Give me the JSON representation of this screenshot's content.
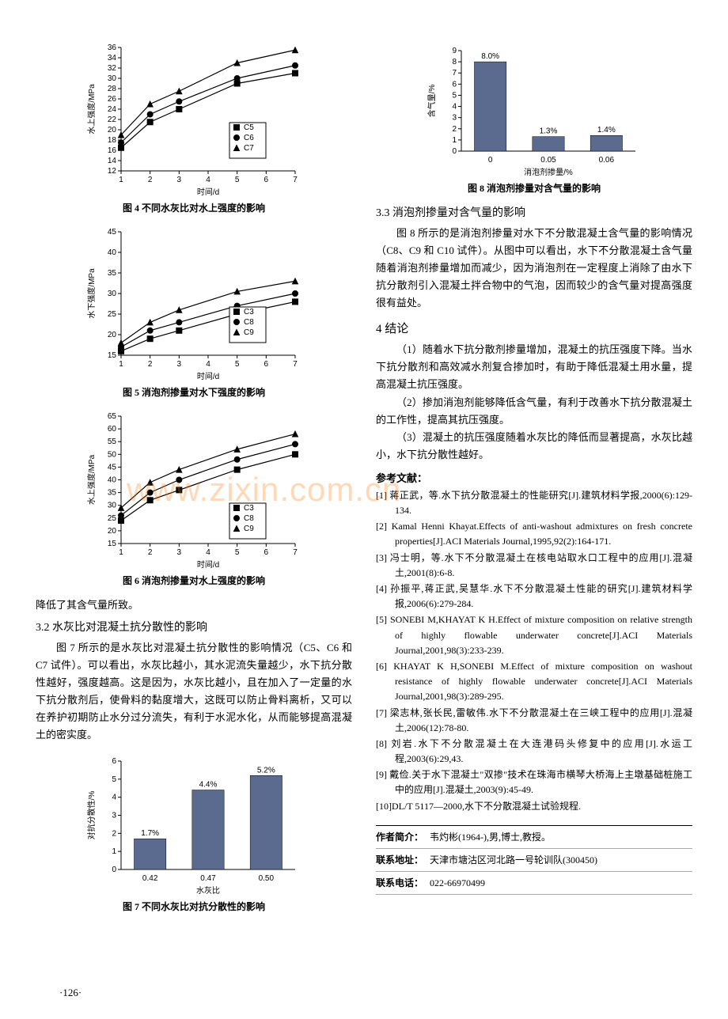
{
  "watermark": "www.zixin.com.cn",
  "page_number": "·126·",
  "left": {
    "fig4": {
      "caption": "图 4  不同水灰比对水上强度的影响",
      "xlabel": "时间/d",
      "ylabel": "水上强度/MPa",
      "xlim": [
        1,
        7
      ],
      "ylim": [
        12,
        36
      ],
      "xticks": [
        1,
        2,
        3,
        4,
        5,
        6,
        7
      ],
      "yticks": [
        12,
        14,
        16,
        18,
        20,
        22,
        24,
        26,
        28,
        30,
        32,
        34,
        36
      ],
      "series": [
        {
          "name": "C5",
          "color": "#000000",
          "marker": "square",
          "data": [
            [
              1,
              16.5
            ],
            [
              2,
              21.5
            ],
            [
              3,
              24
            ],
            [
              5,
              29
            ],
            [
              7,
              31
            ]
          ]
        },
        {
          "name": "C6",
          "color": "#000000",
          "marker": "circle",
          "data": [
            [
              1,
              17.5
            ],
            [
              2,
              23
            ],
            [
              3,
              25.5
            ],
            [
              5,
              30
            ],
            [
              7,
              32.5
            ]
          ]
        },
        {
          "name": "C7",
          "color": "#000000",
          "marker": "triangle",
          "data": [
            [
              1,
              19
            ],
            [
              2,
              25
            ],
            [
              3,
              27.5
            ],
            [
              5,
              33
            ],
            [
              7,
              35.5
            ]
          ]
        }
      ]
    },
    "fig5": {
      "caption": "图 5  消泡剂掺量对水下强度的影响",
      "xlabel": "时间/d",
      "ylabel": "水下强度/MPa",
      "xlim": [
        1,
        7
      ],
      "ylim": [
        15,
        45
      ],
      "xticks": [
        1,
        2,
        3,
        4,
        5,
        6,
        7
      ],
      "yticks": [
        15,
        20,
        25,
        30,
        35,
        40,
        45
      ],
      "series": [
        {
          "name": "C3",
          "color": "#000000",
          "marker": "square",
          "data": [
            [
              1,
              16
            ],
            [
              2,
              19
            ],
            [
              3,
              21
            ],
            [
              5,
              25
            ],
            [
              7,
              28
            ]
          ]
        },
        {
          "name": "C8",
          "color": "#000000",
          "marker": "circle",
          "data": [
            [
              1,
              17
            ],
            [
              2,
              21
            ],
            [
              3,
              23
            ],
            [
              5,
              27
            ],
            [
              7,
              30
            ]
          ]
        },
        {
          "name": "C9",
          "color": "#000000",
          "marker": "triangle",
          "data": [
            [
              1,
              18
            ],
            [
              2,
              23
            ],
            [
              3,
              26
            ],
            [
              5,
              30.5
            ],
            [
              7,
              33
            ]
          ]
        }
      ]
    },
    "fig6": {
      "caption": "图 6  消泡剂掺量对水上强度的影响",
      "xlabel": "时间/d",
      "ylabel": "水上强度/MPa",
      "xlim": [
        1,
        7
      ],
      "ylim": [
        15,
        65
      ],
      "xticks": [
        1,
        2,
        3,
        4,
        5,
        6,
        7
      ],
      "yticks": [
        15,
        20,
        25,
        30,
        35,
        40,
        45,
        50,
        55,
        60,
        65
      ],
      "series": [
        {
          "name": "C3",
          "color": "#000000",
          "marker": "square",
          "data": [
            [
              1,
              24
            ],
            [
              2,
              32
            ],
            [
              3,
              36
            ],
            [
              5,
              44
            ],
            [
              7,
              50
            ]
          ]
        },
        {
          "name": "C8",
          "color": "#000000",
          "marker": "circle",
          "data": [
            [
              1,
              26
            ],
            [
              2,
              35
            ],
            [
              3,
              40
            ],
            [
              5,
              48
            ],
            [
              7,
              54
            ]
          ]
        },
        {
          "name": "C9",
          "color": "#000000",
          "marker": "triangle",
          "data": [
            [
              1,
              29
            ],
            [
              2,
              39
            ],
            [
              3,
              44
            ],
            [
              5,
              52
            ],
            [
              7,
              58
            ]
          ]
        }
      ]
    },
    "para1": "降低了其含气量所致。",
    "h32": "3.2  水灰比对混凝土抗分散性的影响",
    "para2": "图 7 所示的是水灰比对混凝土抗分散性的影响情况（C5、C6 和 C7 试件）。可以看出，水灰比越小，其水泥流失量越少，水下抗分散性越好，强度越高。这是因为，水灰比越小，且在加入了一定量的水下抗分散剂后，使骨料的黏度增大，这既可以防止骨料离析，又可以在养护初期防止水分过分流失，有利于水泥水化，从而能够提高混凝土的密实度。",
    "fig7": {
      "caption": "图 7  不同水灰比对抗分散性的影响",
      "xlabel": "水灰比",
      "ylabel": "对抗分散性/%",
      "ylim": [
        0,
        6
      ],
      "yticks": [
        0,
        1,
        2,
        3,
        4,
        5,
        6
      ],
      "bars": [
        {
          "x": "0.42",
          "v": 1.7,
          "label": "1.7%"
        },
        {
          "x": "0.47",
          "v": 4.4,
          "label": "4.4%"
        },
        {
          "x": "0.50",
          "v": 5.2,
          "label": "5.2%"
        }
      ],
      "bar_color": "#5b6b8f"
    }
  },
  "right": {
    "fig8": {
      "caption": "图 8  消泡剂掺量对含气量的影响",
      "xlabel": "消泡剂掺量/%",
      "ylabel": "含气量/%",
      "ylim": [
        0,
        9
      ],
      "yticks": [
        0,
        1,
        2,
        3,
        4,
        5,
        6,
        7,
        8,
        9
      ],
      "bars": [
        {
          "x": "0",
          "v": 8.0,
          "label": "8.0%"
        },
        {
          "x": "0.05",
          "v": 1.3,
          "label": "1.3%"
        },
        {
          "x": "0.06",
          "v": 1.4,
          "label": "1.4%"
        }
      ],
      "bar_color": "#5b6b8f"
    },
    "h33": "3.3  消泡剂掺量对含气量的影响",
    "para3": "图 8 所示的是消泡剂掺量对水下不分散混凝土含气量的影响情况（C8、C9 和 C10 试件）。从图中可以看出，水下不分散混凝土含气量随着消泡剂掺量增加而减少，因为消泡剂在一定程度上消除了由水下抗分散剂引入混凝土拌合物中的气泡，因而较少的含气量对提高强度很有益处。",
    "h4": "4  结论",
    "c1": "（1）随着水下抗分散剂掺量增加，混凝土的抗压强度下降。当水下抗分散剂和高效减水剂复合掺加时，有助于降低混凝土用水量，提高混凝土抗压强度。",
    "c2": "（2）掺加消泡剂能够降低含气量，有利于改善水下抗分散混凝土的工作性，提高其抗压强度。",
    "c3": "（3）混凝土的抗压强度随着水灰比的降低而显著提高，水灰比越小，水下抗分散性越好。",
    "refs_title": "参考文献：",
    "refs": [
      "[1] 蒋正武，等.水下抗分散混凝土的性能研究[J].建筑材料学报,2000(6):129-134.",
      "[2] Kamal Henni Khayat.Effects of anti-washout admixtures on fresh concrete properties[J].ACI Materials Journal,1995,92(2):164-171.",
      "[3] 冯士明，等.水下不分散混凝土在核电站取水口工程中的应用[J].混凝土,2001(8):6-8.",
      "[4] 孙振平,蒋正武,吴慧华.水下不分散混凝土性能的研究[J].建筑材料学报,2006(6):279-284.",
      "[5] SONEBI M,KHAYAT K H.Effect of mixture composition on relative strength of highly flowable underwater concrete[J].ACI Materials Journal,2001,98(3):233-239.",
      "[6] KHAYAT K H,SONEBI M.Effect of mixture composition on washout resistance of highly flowable underwater concrete[J].ACI Materials Journal,2001,98(3):289-295.",
      "[7] 梁志林,张长民,雷敏伟.水下不分散混凝土在三峡工程中的应用[J].混凝土,2006(12):78-80.",
      "[8] 刘岩.水下不分散混凝土在大连港码头修复中的应用[J].水运工程,2003(6):29,43.",
      "[9] 戴俭.关于水下混凝土\"双掺\"技术在珠海市横琴大桥海上主墩基础桩施工中的应用[J].混凝土,2003(9):45-49.",
      "[10]DL/T 5117—2000,水下不分散混凝土试验规程."
    ],
    "author": {
      "l1_label": "作者简介：",
      "l1": "韦灼彬(1964-),男,博士,教授。",
      "l2_label": "联系地址：",
      "l2": "天津市塘沽区河北路一号轮训队(300450)",
      "l3_label": "联系电话：",
      "l3": "022-66970499"
    }
  }
}
